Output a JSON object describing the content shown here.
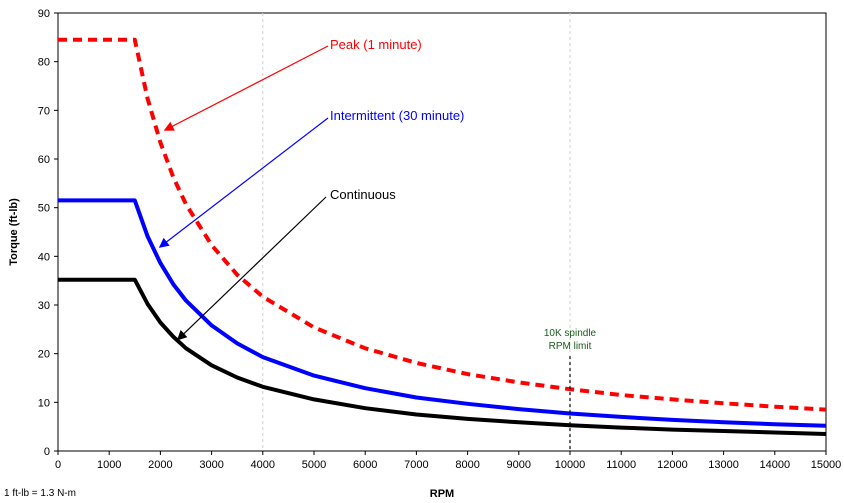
{
  "chart_data": {
    "type": "line",
    "xlabel": "RPM",
    "ylabel": "Torque (ft-lb)",
    "xlim": [
      0,
      15000
    ],
    "ylim": [
      0,
      90
    ],
    "x_ticks": [
      0,
      1000,
      2000,
      3000,
      4000,
      5000,
      6000,
      7000,
      8000,
      9000,
      10000,
      11000,
      12000,
      13000,
      14000,
      15000
    ],
    "y_ticks": [
      0,
      10,
      20,
      30,
      40,
      50,
      60,
      70,
      80,
      90
    ],
    "grid": {
      "vertical_dashed_at": [
        4000,
        10000
      ]
    },
    "series": [
      {
        "name": "Peak (1 minute)",
        "color": "#ff0000",
        "style": "dashed",
        "x": [
          0,
          1500,
          1750,
          2000,
          2250,
          2500,
          3000,
          3500,
          4000,
          5000,
          6000,
          7000,
          8000,
          9000,
          10000,
          11000,
          12000,
          13000,
          14000,
          15000
        ],
        "y": [
          84.5,
          84.5,
          72.4,
          63.4,
          56.3,
          50.7,
          42.3,
          36.2,
          31.7,
          25.4,
          21.1,
          18.1,
          15.8,
          14.1,
          12.7,
          11.5,
          10.6,
          9.8,
          9.1,
          8.5
        ]
      },
      {
        "name": "Intermittent (30 minute)",
        "color": "#0000ff",
        "style": "solid",
        "x": [
          0,
          1500,
          1750,
          2000,
          2250,
          2500,
          3000,
          3500,
          4000,
          5000,
          6000,
          7000,
          8000,
          9000,
          10000,
          11000,
          12000,
          13000,
          14000,
          15000
        ],
        "y": [
          51.5,
          51.5,
          44.1,
          38.6,
          34.3,
          30.9,
          25.8,
          22.1,
          19.3,
          15.5,
          12.9,
          11.0,
          9.7,
          8.6,
          7.7,
          7.0,
          6.4,
          5.9,
          5.5,
          5.2
        ]
      },
      {
        "name": "Continuous",
        "color": "#000000",
        "style": "solid",
        "x": [
          0,
          1500,
          1750,
          2000,
          2250,
          2500,
          3000,
          3500,
          4000,
          5000,
          6000,
          7000,
          8000,
          9000,
          10000,
          11000,
          12000,
          13000,
          14000,
          15000
        ],
        "y": [
          35.2,
          35.2,
          30.2,
          26.4,
          23.5,
          21.1,
          17.6,
          15.1,
          13.2,
          10.6,
          8.8,
          7.5,
          6.6,
          5.9,
          5.3,
          4.8,
          4.4,
          4.1,
          3.8,
          3.5
        ]
      }
    ],
    "annotations": [
      {
        "text": "Peak (1 minute)",
        "color": "#ff0000",
        "arrow_to": {
          "x": 2100,
          "y": 66
        }
      },
      {
        "text": "Intermittent (30 minute)",
        "color": "#0000ff",
        "arrow_to": {
          "x": 2000,
          "y": 42
        }
      },
      {
        "text": "Continuous",
        "color": "#000000",
        "arrow_to": {
          "x": 2350,
          "y": 23
        }
      }
    ],
    "limit_line": {
      "x": 10000,
      "y_top": 19.5,
      "label_line1": "10K spindle",
      "label_line2": "RPM limit",
      "color": "#1a5c1a"
    },
    "footnote": "1 ft-lb = 1.3 N-m"
  }
}
